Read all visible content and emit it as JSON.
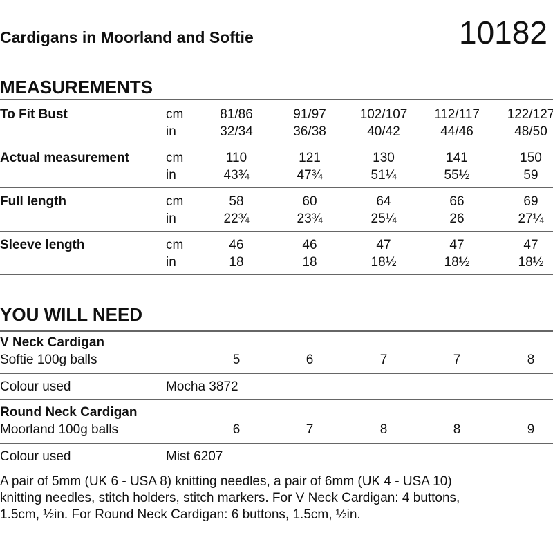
{
  "header": {
    "title": "Cardigans in Moorland and Softie",
    "number": "10182"
  },
  "measurements": {
    "heading": "MEASUREMENTS",
    "rows": [
      {
        "label": "To Fit Bust",
        "units": [
          "cm",
          "in"
        ],
        "values": [
          [
            "81/86",
            "91/97",
            "102/107",
            "112/117",
            "122/127"
          ],
          [
            "32/34",
            "36/38",
            "40/42",
            "44/46",
            "48/50"
          ]
        ]
      },
      {
        "label": "Actual measurement",
        "units": [
          "cm",
          "in"
        ],
        "values": [
          [
            "110",
            "121",
            "130",
            "141",
            "150"
          ],
          [
            "43¾",
            "47¾",
            "51¼",
            "55½",
            "59"
          ]
        ]
      },
      {
        "label": "Full length",
        "units": [
          "cm",
          "in"
        ],
        "values": [
          [
            "58",
            "60",
            "64",
            "66",
            "69"
          ],
          [
            "22¾",
            "23¾",
            "25¼",
            "26",
            "27¼"
          ]
        ]
      },
      {
        "label": "Sleeve length",
        "units": [
          "cm",
          "in"
        ],
        "values": [
          [
            "46",
            "46",
            "47",
            "47",
            "47"
          ],
          [
            "18",
            "18",
            "18½",
            "18½",
            "18½"
          ]
        ]
      }
    ]
  },
  "needs": {
    "heading": "YOU WILL NEED",
    "items": [
      {
        "title": "V Neck Cardigan",
        "yarn": "Softie 100g balls",
        "balls": [
          "5",
          "6",
          "7",
          "7",
          "8"
        ],
        "colour_label": "Colour used",
        "colour": "Mocha 3872"
      },
      {
        "title": "Round Neck Cardigan",
        "yarn": "Moorland 100g balls",
        "balls": [
          "6",
          "7",
          "8",
          "8",
          "9"
        ],
        "colour_label": "Colour used",
        "colour": "Mist 6207"
      }
    ]
  },
  "note": [
    "A pair of 5mm (UK 6 - USA 8) knitting needles, a pair of 6mm (UK 4 - USA 10)",
    "knitting needles, stitch holders, stitch markers. For V Neck Cardigan: 4 buttons,",
    "1.5cm, ½in. For Round Neck Cardigan: 6 buttons, 1.5cm, ½in."
  ]
}
